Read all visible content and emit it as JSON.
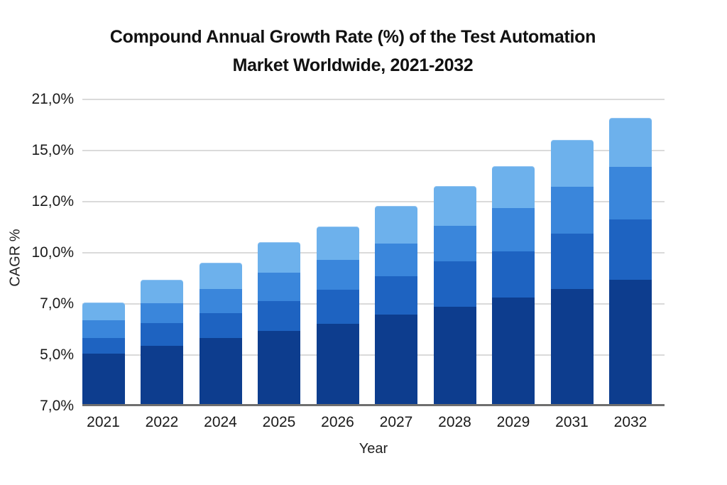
{
  "chart_data": {
    "type": "bar",
    "stacked": true,
    "title_lines": [
      "Compound Annual Growth Rate (%) of the Test Automation",
      "Market Worldwide, 2021-2032"
    ],
    "xlabel": "Year",
    "ylabel": "CAGR %",
    "categories": [
      "2021",
      "2022",
      "2024",
      "2025",
      "2026",
      "2027",
      "2028",
      "2029",
      "2031",
      "2032"
    ],
    "y_tick_labels": [
      "21,0%",
      "15,0%",
      "12,0%",
      "10,0%",
      "7,0%",
      "5,0%",
      "7,0%"
    ],
    "ylim": [
      0,
      21
    ],
    "grid": true,
    "legend": "none",
    "series": [
      {
        "name": "segment-bottom-navy",
        "color": "#0d3d8e",
        "values": [
          3.45,
          3.99,
          4.52,
          5.01,
          5.49,
          6.13,
          6.66,
          7.29,
          7.88,
          8.51
        ]
      },
      {
        "name": "segment-lower-middle",
        "color": "#1e63c1",
        "values": [
          1.07,
          1.56,
          1.7,
          2.04,
          2.33,
          2.63,
          3.11,
          3.16,
          3.79,
          4.13
        ]
      },
      {
        "name": "segment-upper-middle",
        "color": "#3a86db",
        "values": [
          1.22,
          1.36,
          1.65,
          1.94,
          2.04,
          2.24,
          2.43,
          2.97,
          3.21,
          3.6
        ]
      },
      {
        "name": "segment-top-light",
        "color": "#6db1ec",
        "values": [
          1.22,
          1.6,
          1.8,
          2.09,
          2.28,
          2.58,
          2.72,
          2.87,
          3.21,
          3.35
        ]
      }
    ],
    "totals": [
      6.95,
      8.51,
      9.67,
      11.08,
      12.15,
      13.56,
      14.92,
      16.28,
      18.08,
      19.59
    ]
  },
  "colors": {
    "background": "#ffffff",
    "gridline": "#dadada",
    "baseline": "#6f6f6f",
    "text": "#141414"
  }
}
